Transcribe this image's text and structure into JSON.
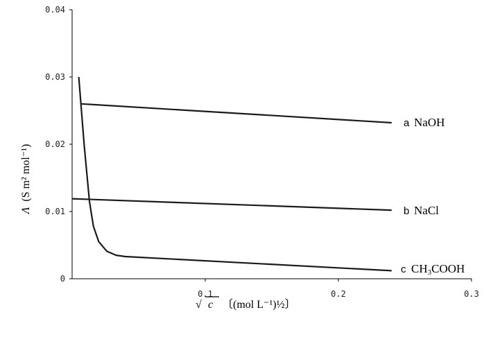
{
  "chart_data": {
    "type": "line",
    "xlim": [
      0,
      0.3
    ],
    "ylim": [
      0,
      0.04
    ],
    "x_ticks": [
      "0.1",
      "0.2",
      "0.3"
    ],
    "y_ticks": [
      "0",
      "0.01",
      "0.02",
      "0.03",
      "0.04"
    ],
    "ylabel": {
      "symbol": "Λ",
      "units": "(S m² mol⁻¹)"
    },
    "xlabel": {
      "sqrt_symbol": "√",
      "var": "c",
      "units": "〔(mol L⁻¹)½〕"
    },
    "series": [
      {
        "letter": "a",
        "name": "NaOH",
        "x": [
          0.007,
          0.24
        ],
        "y": [
          0.026,
          0.0232
        ]
      },
      {
        "letter": "b",
        "name": "NaCl",
        "x": [
          0.0,
          0.24
        ],
        "y": [
          0.0119,
          0.0102
        ]
      },
      {
        "letter": "c",
        "name_parts": [
          "CH",
          "3",
          "COOH"
        ],
        "x": [
          0.005,
          0.009,
          0.013,
          0.016,
          0.02,
          0.026,
          0.033,
          0.04,
          0.24
        ],
        "y": [
          0.03,
          0.02,
          0.0115,
          0.0078,
          0.0055,
          0.0041,
          0.0035,
          0.0033,
          0.0012
        ]
      }
    ]
  }
}
